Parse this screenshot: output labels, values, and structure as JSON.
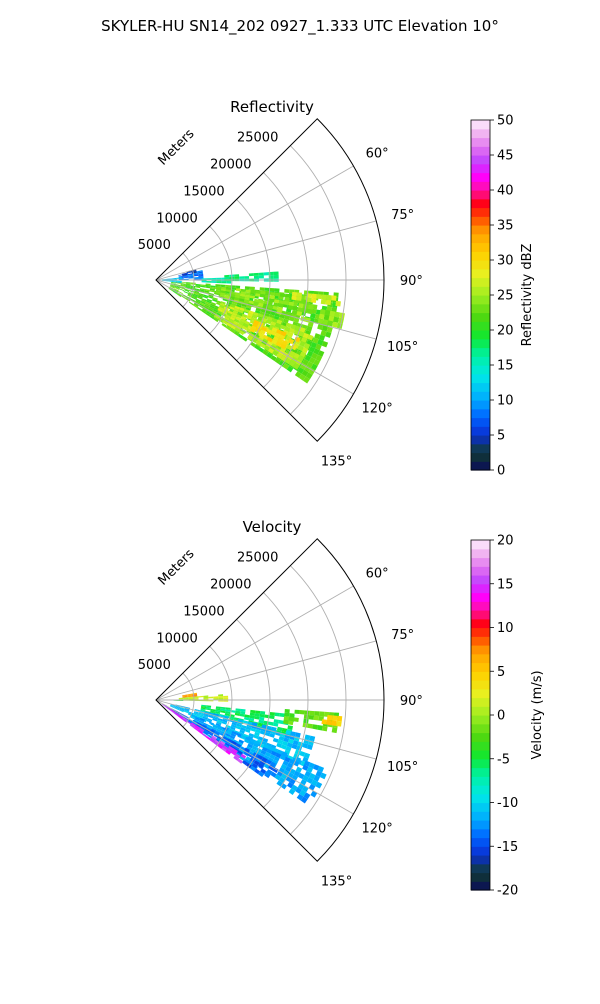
{
  "suptitle": "SKYLER-HU  SN14_202  0927_1.333 UTC Elevation 10°",
  "chart_data": [
    {
      "type": "polar-ppi",
      "title": "Reflectivity",
      "range_label": "Meters",
      "range_ticks": [
        "5000",
        "10000",
        "15000",
        "20000",
        "25000"
      ],
      "range_tick_values": [
        5000,
        10000,
        15000,
        20000,
        25000
      ],
      "rmax": 30000,
      "azimuth_ticks": [
        "60°",
        "75°",
        "90°",
        "105°",
        "120°",
        "135°"
      ],
      "azimuth_tick_values": [
        60,
        75,
        90,
        105,
        120,
        135
      ],
      "azimuth_range": [
        45,
        135
      ],
      "grid": true,
      "colorbar": {
        "label": "Reflectivity dBZ",
        "min": 0,
        "max": 50,
        "ticks": [
          "0",
          "5",
          "10",
          "15",
          "20",
          "25",
          "30",
          "35",
          "40",
          "45",
          "50"
        ],
        "tick_values": [
          0,
          5,
          10,
          15,
          20,
          25,
          30,
          35,
          40,
          45,
          50
        ]
      },
      "echo_regions": [
        {
          "az": [
            94,
            124
          ],
          "r": [
            2000,
            24000
          ],
          "value": 22
        },
        {
          "az": [
            96,
            104
          ],
          "r": [
            8000,
            21000
          ],
          "value": 24
        },
        {
          "az": [
            108,
            122
          ],
          "r": [
            9000,
            22000
          ],
          "value": 26
        },
        {
          "az": [
            112,
            118
          ],
          "r": [
            14000,
            20000
          ],
          "value": 30
        },
        {
          "az": [
            95,
            98
          ],
          "r": [
            18000,
            24000
          ],
          "value": 27
        },
        {
          "az": [
            78,
            90
          ],
          "r": [
            3000,
            6000
          ],
          "value": 8
        },
        {
          "az": [
            75,
            80
          ],
          "r": [
            3500,
            5000
          ],
          "value": 5
        },
        {
          "az": [
            88,
            92
          ],
          "r": [
            6000,
            9500
          ],
          "value": 16
        },
        {
          "az": [
            86,
            90
          ],
          "r": [
            9000,
            16000
          ],
          "value": 17
        },
        {
          "az": [
            84,
            96
          ],
          "r": [
            800,
            3000
          ],
          "value": 12
        },
        {
          "az": [
            100,
            104
          ],
          "r": [
            22000,
            25000
          ],
          "value": 24
        }
      ]
    },
    {
      "type": "polar-ppi",
      "title": "Velocity",
      "range_label": "Meters",
      "range_ticks": [
        "5000",
        "10000",
        "15000",
        "20000",
        "25000"
      ],
      "range_tick_values": [
        5000,
        10000,
        15000,
        20000,
        25000
      ],
      "rmax": 30000,
      "azimuth_ticks": [
        "60°",
        "75°",
        "90°",
        "105°",
        "120°",
        "135°"
      ],
      "azimuth_tick_values": [
        60,
        75,
        90,
        105,
        120,
        135
      ],
      "azimuth_range": [
        45,
        135
      ],
      "grid": true,
      "colorbar": {
        "label": "Velocity (m/s)",
        "min": -20,
        "max": 20,
        "ticks": [
          "-20",
          "-15",
          "-10",
          "-5",
          "0",
          "5",
          "10",
          "15",
          "20"
        ],
        "tick_values": [
          -20,
          -15,
          -10,
          -5,
          0,
          5,
          10,
          15,
          20
        ]
      },
      "echo_regions": [
        {
          "az": [
            96,
            104
          ],
          "r": [
            6000,
            18000
          ],
          "value": -6
        },
        {
          "az": [
            94,
            100
          ],
          "r": [
            17000,
            24000
          ],
          "value": -2
        },
        {
          "az": [
            95,
            98
          ],
          "r": [
            22000,
            24500
          ],
          "value": 5
        },
        {
          "az": [
            103,
            114
          ],
          "r": [
            2000,
            21000
          ],
          "value": -11
        },
        {
          "az": [
            112,
            124
          ],
          "r": [
            5000,
            24000
          ],
          "value": -12
        },
        {
          "az": [
            118,
            125
          ],
          "r": [
            1000,
            18000
          ],
          "value": -14
        },
        {
          "az": [
            122,
            126
          ],
          "r": [
            1000,
            14000
          ],
          "value": 15
        },
        {
          "az": [
            85,
            90
          ],
          "r": [
            3000,
            9000
          ],
          "value": 1
        },
        {
          "az": [
            80,
            84
          ],
          "r": [
            3500,
            5000
          ],
          "value": 7
        },
        {
          "az": [
            89,
            92
          ],
          "r": [
            1000,
            3000
          ],
          "value": -4
        }
      ]
    }
  ]
}
